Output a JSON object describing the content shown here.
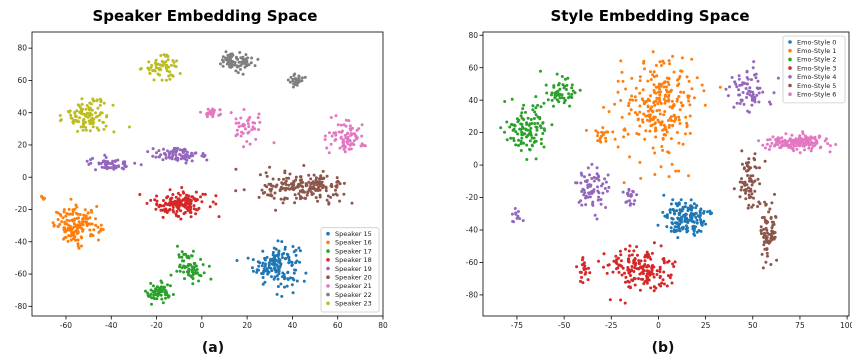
{
  "chart_data": [
    {
      "type": "scatter",
      "title": "Speaker Embedding Space",
      "caption": "(a)",
      "xlim": [
        -75,
        80
      ],
      "ylim": [
        -86,
        90
      ],
      "xticks": [
        -60,
        -40,
        -20,
        0,
        20,
        40,
        60,
        80
      ],
      "yticks": [
        -80,
        -60,
        -40,
        -20,
        0,
        20,
        40,
        60,
        80
      ],
      "xlabel": "",
      "ylabel": "",
      "grid": false,
      "legend_position": "bottom-right",
      "series": [
        {
          "name": "Speaker 15",
          "color": "#1f77b4",
          "clusters": [
            {
              "cx": 33,
              "cy": -54,
              "rx": 10,
              "ry": 13,
              "n": 150
            }
          ]
        },
        {
          "name": "Speaker 16",
          "color": "#ff7f0e",
          "clusters": [
            {
              "cx": -55,
              "cy": -30,
              "rx": 10,
              "ry": 11,
              "n": 145
            },
            {
              "cx": -69,
              "cy": -13,
              "rx": 3,
              "ry": 1.5,
              "n": 5
            }
          ]
        },
        {
          "name": "Speaker 17",
          "color": "#2ca02c",
          "clusters": [
            {
              "cx": -5,
              "cy": -55,
              "rx": 6,
              "ry": 9,
              "n": 70
            },
            {
              "cx": -19,
              "cy": -72,
              "rx": 6,
              "ry": 6,
              "n": 60
            }
          ]
        },
        {
          "name": "Speaker 18",
          "color": "#d62728",
          "clusters": [
            {
              "cx": -10,
              "cy": -16,
              "rx": 12,
              "ry": 8,
              "n": 150
            }
          ]
        },
        {
          "name": "Speaker 19",
          "color": "#9467bd",
          "clusters": [
            {
              "cx": -40,
              "cy": 8,
              "rx": 10,
              "ry": 4,
              "n": 55
            },
            {
              "cx": -10,
              "cy": 14,
              "rx": 13,
              "ry": 5,
              "n": 80
            }
          ]
        },
        {
          "name": "Speaker 20",
          "color": "#8c564b",
          "clusters": [
            {
              "cx": 45,
              "cy": -7,
              "rx": 19,
              "ry": 9,
              "n": 190
            }
          ]
        },
        {
          "name": "Speaker 21",
          "color": "#e377c2",
          "clusters": [
            {
              "cx": 5,
              "cy": 40,
              "rx": 6,
              "ry": 3,
              "n": 25
            },
            {
              "cx": 20,
              "cy": 30,
              "rx": 7,
              "ry": 10,
              "n": 40
            },
            {
              "cx": 64,
              "cy": 25,
              "rx": 8,
              "ry": 10,
              "n": 80
            }
          ]
        },
        {
          "name": "Speaker 22",
          "color": "#7f7f7f",
          "clusters": [
            {
              "cx": 15,
              "cy": 72,
              "rx": 8,
              "ry": 6,
              "n": 75
            },
            {
              "cx": 42,
              "cy": 60,
              "rx": 4,
              "ry": 4,
              "n": 30
            }
          ]
        },
        {
          "name": "Speaker 23",
          "color": "#bcbd22",
          "clusters": [
            {
              "cx": -18,
              "cy": 68,
              "rx": 8,
              "ry": 7,
              "n": 60
            },
            {
              "cx": -50,
              "cy": 38,
              "rx": 10,
              "ry": 10,
              "n": 110
            }
          ]
        }
      ]
    },
    {
      "type": "scatter",
      "title": "Style Embedding Space",
      "caption": "(b)",
      "xlim": [
        -93,
        101
      ],
      "ylim": [
        -93,
        82
      ],
      "xticks": [
        -75,
        -50,
        -25,
        0,
        25,
        50,
        75,
        100
      ],
      "yticks": [
        -80,
        -60,
        -40,
        -20,
        0,
        20,
        40,
        60,
        80
      ],
      "xlabel": "",
      "ylabel": "",
      "grid": false,
      "legend_position": "top-right",
      "series": [
        {
          "name": "Emo-Style 0",
          "color": "#1f77b4",
          "clusters": [
            {
              "cx": 15,
              "cy": -33,
              "rx": 11,
              "ry": 10,
              "n": 160
            }
          ]
        },
        {
          "name": "Emo-Style 1",
          "color": "#ff7f0e",
          "clusters": [
            {
              "cx": 0,
              "cy": 35,
              "rx": 20,
              "ry": 32,
              "n": 260
            },
            {
              "cx": -30,
              "cy": 18,
              "rx": 6,
              "ry": 5,
              "n": 20
            }
          ]
        },
        {
          "name": "Emo-Style 2",
          "color": "#2ca02c",
          "clusters": [
            {
              "cx": -70,
              "cy": 22,
              "rx": 11,
              "ry": 17,
              "n": 110
            },
            {
              "cx": -52,
              "cy": 45,
              "rx": 8,
              "ry": 9,
              "n": 55
            }
          ]
        },
        {
          "name": "Emo-Style 3",
          "color": "#d62728",
          "clusters": [
            {
              "cx": -10,
              "cy": -65,
              "rx": 18,
              "ry": 14,
              "n": 170
            },
            {
              "cx": -40,
              "cy": -65,
              "rx": 4,
              "ry": 8,
              "n": 20
            }
          ]
        },
        {
          "name": "Emo-Style 4",
          "color": "#9467bd",
          "clusters": [
            {
              "cx": -35,
              "cy": -15,
              "rx": 10,
              "ry": 13,
              "n": 75
            },
            {
              "cx": -15,
              "cy": -17,
              "rx": 4,
              "ry": 8,
              "n": 20
            },
            {
              "cx": -75,
              "cy": -32,
              "rx": 4,
              "ry": 4,
              "n": 12
            },
            {
              "cx": 47,
              "cy": 47,
              "rx": 12,
              "ry": 13,
              "n": 70
            }
          ]
        },
        {
          "name": "Emo-Style 5",
          "color": "#8c564b",
          "clusters": [
            {
              "cx": 48,
              "cy": -10,
              "rx": 6,
              "ry": 18,
              "n": 70
            },
            {
              "cx": 58,
              "cy": -40,
              "rx": 5,
              "ry": 18,
              "n": 75
            }
          ]
        },
        {
          "name": "Emo-Style 6",
          "color": "#e377c2",
          "clusters": [
            {
              "cx": 73,
              "cy": 14,
              "rx": 17,
              "ry": 5,
              "n": 160
            }
          ]
        }
      ]
    }
  ]
}
